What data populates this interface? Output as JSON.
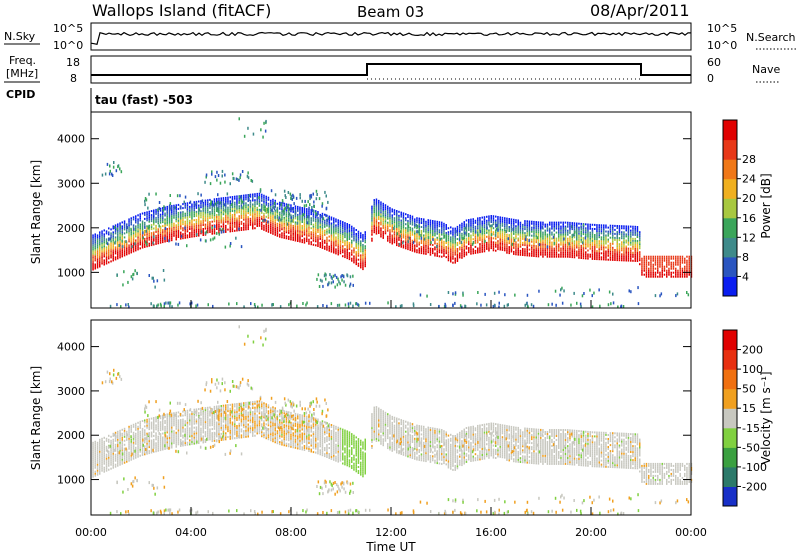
{
  "header": {
    "site": "Wallops Island (fitACF)",
    "beam": "Beam 03",
    "date": "08/Apr/2011"
  },
  "top_panels": {
    "nsky": {
      "label": "N.Sky",
      "ticks": [
        "10^5",
        "10^0"
      ]
    },
    "nsearch": {
      "label": "N.Search",
      "ticks": [
        "10^5",
        "10^0"
      ]
    },
    "freq": {
      "label_line1": "Freq.",
      "label_line2": "[MHz]",
      "ticks": [
        "18",
        "8"
      ]
    },
    "nave": {
      "label": "Nave",
      "ticks": [
        "60",
        "0"
      ]
    },
    "cpid": {
      "label": "CPID",
      "value": "tau (fast) -503"
    }
  },
  "chart_data": [
    {
      "type": "heatmap",
      "panel": "power",
      "xlabel": "",
      "ylabel": "Slant Range [km]",
      "x_ticks": [
        "00:00",
        "04:00",
        "08:00",
        "12:00",
        "16:00",
        "20:00",
        "00:00"
      ],
      "y_ticks": [
        1000,
        2000,
        3000,
        4000
      ],
      "ylim": [
        200,
        4600
      ],
      "colorbar": {
        "label": "Power [dB]",
        "ticks": [
          "4",
          "8",
          "12",
          "16",
          "20",
          "24",
          "28"
        ],
        "colors": [
          "#0a1ef0",
          "#2a55c0",
          "#3e8a8a",
          "#3aa55a",
          "#a8c840",
          "#f0b020",
          "#f07818",
          "#e83818",
          "#e00000"
        ]
      },
      "traces": [
        {
          "name": "main",
          "points": [
            [
              0.0,
              1150
            ],
            [
              1.0,
              1400
            ],
            [
              2.0,
              1650
            ],
            [
              3.0,
              1800
            ],
            [
              4.0,
              1900
            ],
            [
              5.0,
              1980
            ],
            [
              6.0,
              2050
            ],
            [
              6.7,
              2100
            ],
            [
              7.5,
              1900
            ],
            [
              9.0,
              1700
            ],
            [
              10.3,
              1400
            ],
            [
              10.9,
              1150
            ],
            [
              11.3,
              2000
            ],
            [
              12.0,
              1750
            ],
            [
              13.0,
              1550
            ],
            [
              14.0,
              1450
            ],
            [
              14.5,
              1300
            ],
            [
              15.0,
              1500
            ],
            [
              16.0,
              1600
            ],
            [
              17.0,
              1500
            ],
            [
              18.0,
              1450
            ],
            [
              19.0,
              1450
            ],
            [
              20.0,
              1400
            ],
            [
              21.9,
              1350
            ],
            [
              22.0,
              1000
            ],
            [
              24.0,
              1000
            ]
          ]
        }
      ]
    },
    {
      "type": "heatmap",
      "panel": "velocity",
      "xlabel": "Time UT",
      "ylabel": "Slant Range [km]",
      "x_ticks": [
        "00:00",
        "04:00",
        "08:00",
        "12:00",
        "16:00",
        "20:00",
        "00:00"
      ],
      "y_ticks": [
        1000,
        2000,
        3000,
        4000
      ],
      "ylim": [
        200,
        4600
      ],
      "colorbar": {
        "label": "Velocity [m s⁻¹]",
        "ticks": [
          "200",
          "100",
          "50",
          "15",
          "-15",
          "-50",
          "-100",
          "-200"
        ],
        "colors": [
          "#1830c8",
          "#2c7a6a",
          "#3aa040",
          "#80d040",
          "#c8c8c0",
          "#f0a020",
          "#f07010",
          "#e83010",
          "#e00000"
        ]
      }
    }
  ]
}
